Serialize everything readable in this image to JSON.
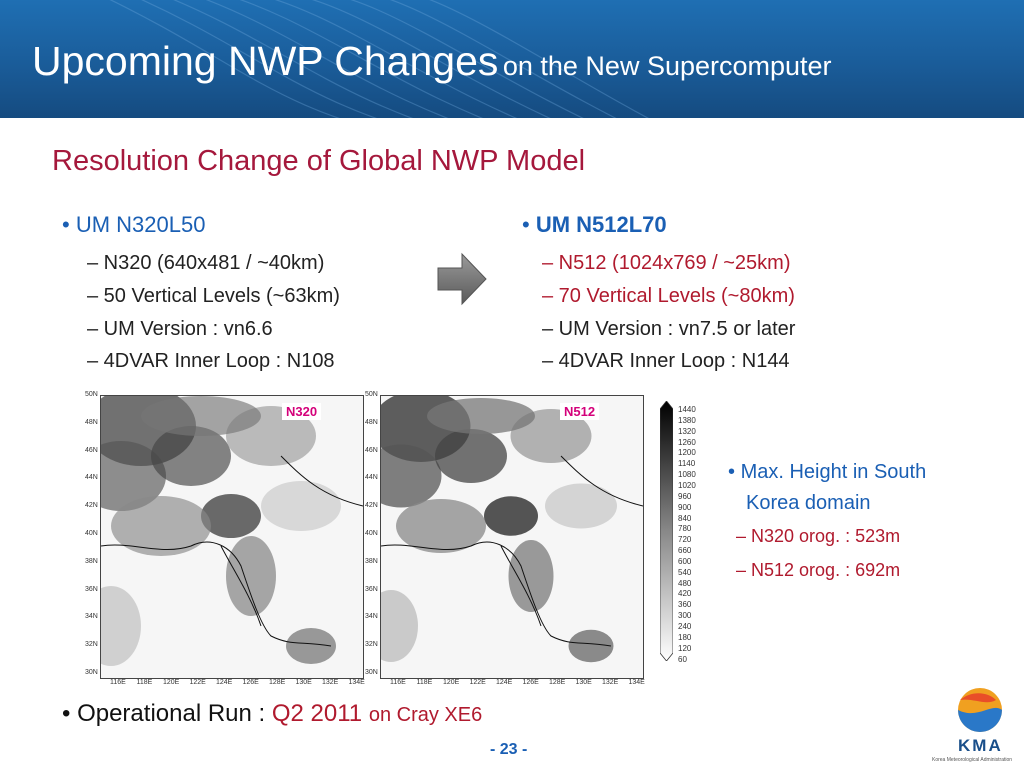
{
  "slide": {
    "title_main": "Upcoming NWP Changes",
    "title_sub": "on the New Supercomputer",
    "subtitle": "Resolution Change of Global NWP Model",
    "page_number": "- 23 -"
  },
  "left_col": {
    "heading": "• UM N320L50",
    "items": [
      "– N320 (640x481 / ~40km)",
      "– 50 Vertical Levels (~63km)",
      "– UM Version : vn6.6",
      "– 4DVAR Inner Loop : N108"
    ]
  },
  "right_col": {
    "bullet": "•",
    "heading": "UM N512L70",
    "items": [
      "– N512 (1024x769 / ~25km)",
      "– 70 Vertical Levels (~80km)",
      "– UM Version : vn7.5 or later",
      "– 4DVAR Inner Loop : N144"
    ]
  },
  "maps": {
    "left_label": "N320",
    "right_label": "N512",
    "lat_ticks": [
      "50N",
      "48N",
      "46N",
      "44N",
      "42N",
      "40N",
      "38N",
      "36N",
      "34N",
      "32N",
      "30N"
    ],
    "lon_ticks": [
      "116E",
      "118E",
      "120E",
      "122E",
      "124E",
      "126E",
      "128E",
      "130E",
      "132E",
      "134E"
    ]
  },
  "colorbar": {
    "labels": [
      "1440",
      "1380",
      "1320",
      "1260",
      "1200",
      "1140",
      "1080",
      "1020",
      "960",
      "900",
      "840",
      "780",
      "720",
      "660",
      "600",
      "540",
      "480",
      "420",
      "360",
      "300",
      "240",
      "180",
      "120",
      "60"
    ]
  },
  "side_note": {
    "bullet": "•",
    "line1": "Max. Height in South",
    "line2": "Korea domain",
    "item1": "– N320 orog. : 523m",
    "item2": "– N512 orog. : 692m"
  },
  "operational": {
    "prefix": "• Operational Run :",
    "date": "Q2 2011",
    "platform": "on Cray XE6"
  },
  "logo": {
    "text": "KMA",
    "subtext": "Korea Meteorological Administration"
  },
  "colors": {
    "banner": "#1a5c99",
    "subtitle": "#a5183c",
    "accent_blue": "#1a5fb4",
    "accent_red": "#b01a2e",
    "map_label": "#d4007a"
  }
}
